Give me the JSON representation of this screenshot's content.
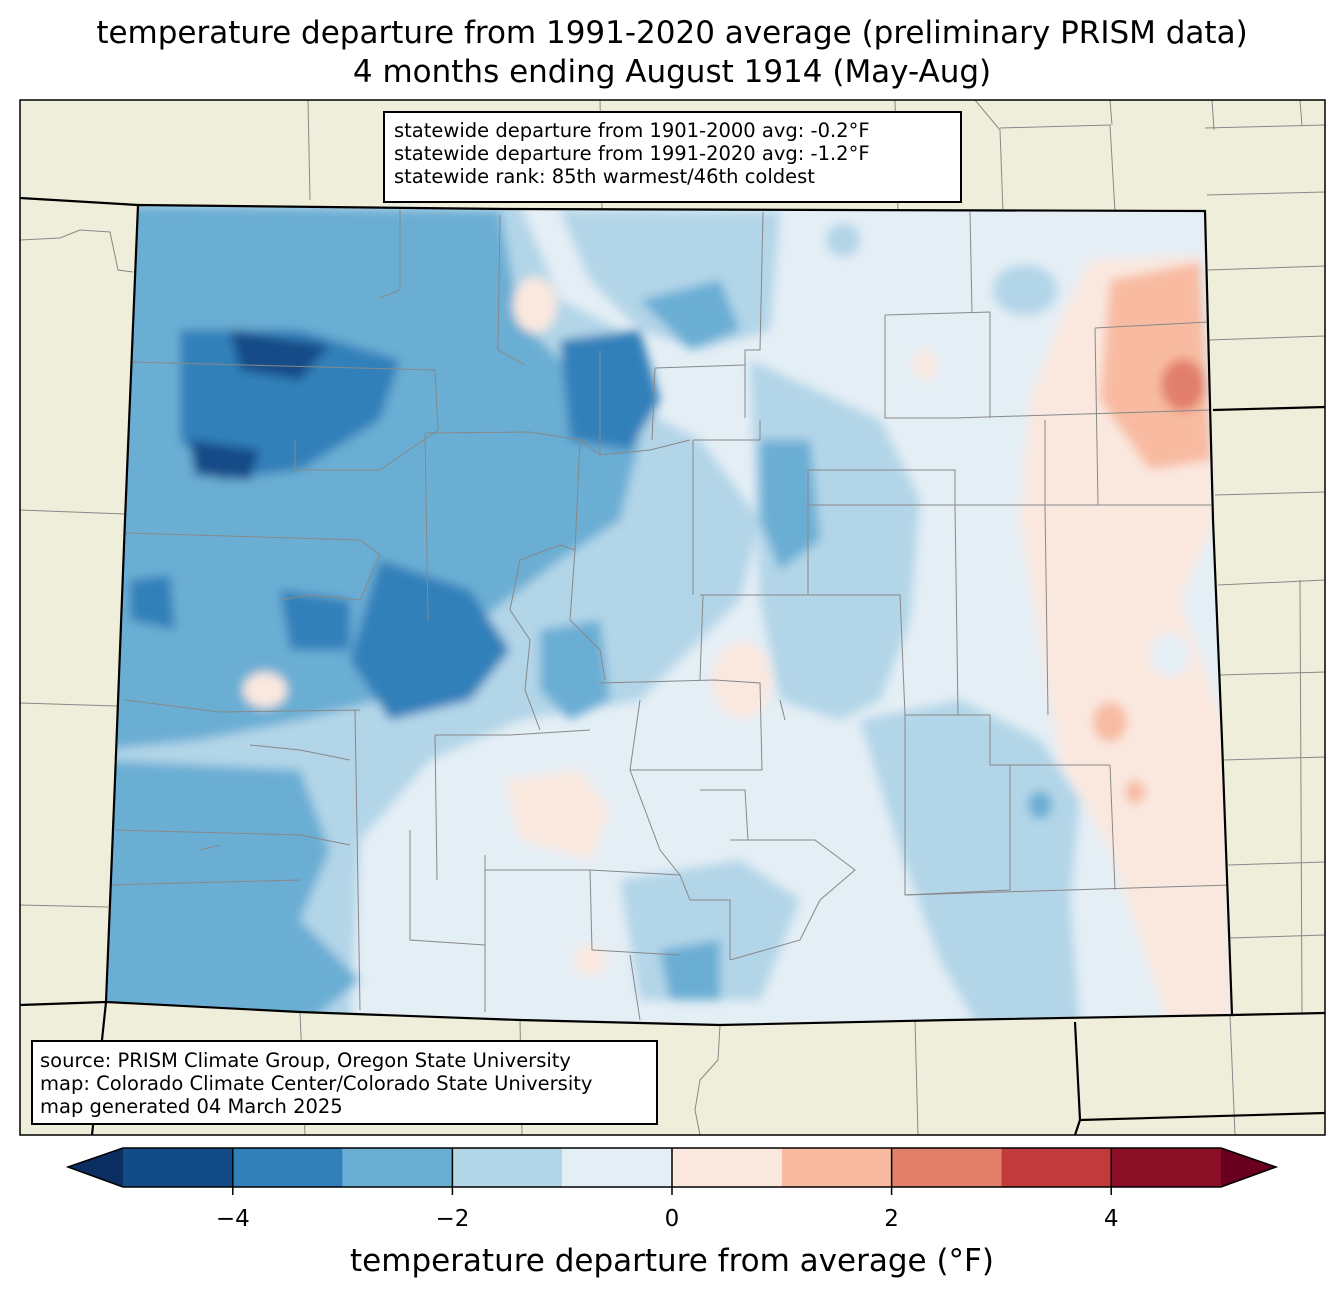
{
  "title": {
    "line1": "temperature departure from 1991-2020 average (preliminary PRISM data)",
    "line2": "4 months ending August 1914 (May-Aug)"
  },
  "stats": {
    "line1": "statewide departure from 1901-2000 avg: -0.2°F",
    "line2": "statewide departure from 1991-2020 avg: -1.2°F",
    "line3": "statewide rank: 85th warmest/46th coldest"
  },
  "credits": {
    "line1": "source: PRISM Climate Group, Oregon State University",
    "line2": "map: Colorado Climate Center/Colorado State University",
    "line3": "map generated 04 March 2025"
  },
  "colorbar": {
    "label": "temperature departure from average (°F)",
    "ticks": [
      "−4",
      "−2",
      "0",
      "2",
      "4"
    ],
    "tick_values": [
      -4,
      -2,
      0,
      2,
      4
    ],
    "range": [
      -5,
      5
    ],
    "bins": [
      {
        "from": -5,
        "to": -4,
        "color": "#134b87"
      },
      {
        "from": -4,
        "to": -3,
        "color": "#3280ba"
      },
      {
        "from": -3,
        "to": -2,
        "color": "#6aaed4"
      },
      {
        "from": -2,
        "to": -1,
        "color": "#b2d5e8"
      },
      {
        "from": -1,
        "to": 0,
        "color": "#e4eef5"
      },
      {
        "from": 0,
        "to": 1,
        "color": "#fae8df"
      },
      {
        "from": 1,
        "to": 2,
        "color": "#f8bba1"
      },
      {
        "from": 2,
        "to": 3,
        "color": "#e27f6a"
      },
      {
        "from": 3,
        "to": 4,
        "color": "#c23b3c"
      },
      {
        "from": 4,
        "to": 5,
        "color": "#890e26"
      }
    ],
    "under_color": "#0a2e60",
    "over_color": "#6a0020"
  },
  "colors": {
    "land_outside": "#efeedb",
    "boundary": "#888888",
    "state_border": "#000000"
  }
}
